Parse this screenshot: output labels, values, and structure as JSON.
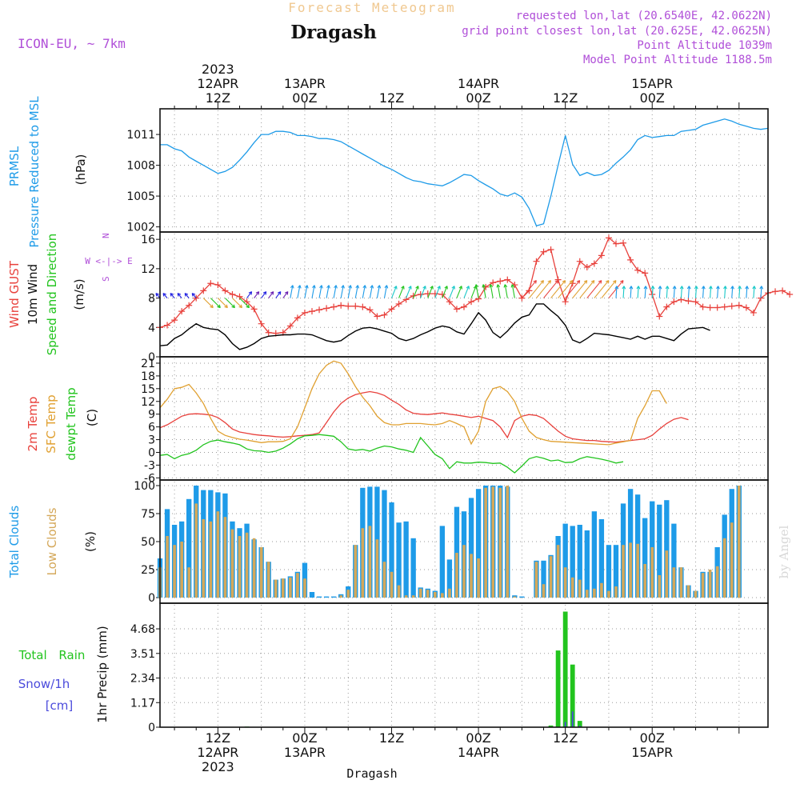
{
  "header": {
    "title": "Forecast Meteogram",
    "location": "Dragash",
    "model": "ICON-EU, ~ 7km",
    "requested": "requested lon,lat (20.6540E, 42.0622N)",
    "grid": "grid point closest lon,lat (20.625E, 42.0625N)",
    "point_alt": "Point Altitude 1039m",
    "model_alt": "Model Point Altitude 1188.5m",
    "watermark": "by Angel",
    "footer": "Dragash"
  },
  "colors": {
    "prmsl": "#1e9be8",
    "gust": "#e8413c",
    "wind": "#000000",
    "dir": "#22c41e",
    "t2m": "#e8413c",
    "sfc": "#e0a030",
    "dewpt": "#22c41e",
    "total_clouds": "#1e9be8",
    "low_clouds": "#d4a85a",
    "rain": "#22c41e",
    "snow": "#4b4bdc",
    "model": "#b04fd8",
    "title_faint": "#f0c890"
  },
  "time_axis": {
    "top_ticks": [
      {
        "h": 12,
        "lines": [
          "2023",
          "12APR",
          "12Z"
        ]
      },
      {
        "h": 24,
        "lines": [
          "13APR",
          "00Z"
        ]
      },
      {
        "h": 36,
        "lines": [
          "12Z"
        ]
      },
      {
        "h": 48,
        "lines": [
          "14APR",
          "00Z"
        ]
      },
      {
        "h": 60,
        "lines": [
          "12Z"
        ]
      },
      {
        "h": 72,
        "lines": [
          "15APR",
          "00Z"
        ]
      }
    ],
    "bottom_ticks": [
      {
        "h": 12,
        "lines": [
          "12Z",
          "12APR",
          "2023"
        ]
      },
      {
        "h": 24,
        "lines": [
          "00Z",
          "13APR"
        ]
      },
      {
        "h": 36,
        "lines": [
          "12Z"
        ]
      },
      {
        "h": 48,
        "lines": [
          "00Z",
          "14APR"
        ]
      },
      {
        "h": 60,
        "lines": [
          "12Z"
        ]
      },
      {
        "h": 72,
        "lines": [
          "00Z",
          "15APR"
        ]
      }
    ]
  },
  "panels": {
    "prmsl": {
      "labels": [
        "PRMSL",
        "Pressure Reduced to MSL"
      ],
      "unit": "(hPa)",
      "ticks": [
        "1002",
        "1005",
        "1008",
        "1011"
      ]
    },
    "wind": {
      "labels": [
        "Wind GUST",
        "10m Wind",
        "Speed and Direction"
      ],
      "unit": "(m/s)",
      "ticks": [
        "0",
        "4",
        "8",
        "12",
        "16"
      ],
      "compass": [
        "N",
        "W <-|-> E",
        "S"
      ]
    },
    "temp": {
      "labels": [
        "2m Temp",
        "SFC Temp",
        "dewpt Temp"
      ],
      "unit": "(C)",
      "ticks": [
        "-6",
        "-3",
        "0",
        "3",
        "6",
        "9",
        "12",
        "15",
        "18",
        "21"
      ]
    },
    "clouds": {
      "labels": [
        "Total Clouds",
        "Low Clouds"
      ],
      "unit": "(%)",
      "ticks": [
        "0",
        "25",
        "50",
        "75",
        "100"
      ]
    },
    "precip": {
      "labels": [
        "Total Rain",
        "Snow/1h",
        "[cm]"
      ],
      "axis_label": "1hr Precip (mm)",
      "ticks": [
        "0",
        "1.17",
        "2.34",
        "3.51",
        "4.68"
      ]
    }
  },
  "chart_data": [
    {
      "type": "line",
      "title": "PRMSL",
      "ylabel": "(hPa)",
      "ylim": [
        1001.5,
        1013.5
      ],
      "x_start": "2023-04-12 04Z",
      "x_step_hours": 1,
      "series": [
        {
          "name": "PRMSL",
          "values": [
            1010.0,
            1010.0,
            1009.6,
            1009.4,
            1008.8,
            1008.4,
            1008.0,
            1007.6,
            1007.2,
            1007.4,
            1007.8,
            1008.5,
            1009.3,
            1010.2,
            1011.0,
            1011.0,
            1011.3,
            1011.3,
            1011.2,
            1010.9,
            1010.9,
            1010.8,
            1010.6,
            1010.6,
            1010.5,
            1010.3,
            1009.9,
            1009.5,
            1009.1,
            1008.7,
            1008.3,
            1007.9,
            1007.6,
            1007.2,
            1006.8,
            1006.5,
            1006.4,
            1006.2,
            1006.1,
            1006.0,
            1006.3,
            1006.7,
            1007.1,
            1007.0,
            1006.5,
            1006.1,
            1005.7,
            1005.2,
            1005.0,
            1005.3,
            1004.9,
            1003.8,
            1002.1,
            1002.3,
            1005.0,
            1008.0,
            1010.9,
            1008.1,
            1007.0,
            1007.3,
            1007.0,
            1007.1,
            1007.5,
            1008.2,
            1008.8,
            1009.5,
            1010.5,
            1010.9,
            1010.7,
            1010.8,
            1010.9,
            1010.9,
            1011.3,
            1011.4,
            1011.5,
            1011.9,
            1012.1,
            1012.3,
            1012.5,
            1012.3,
            1012.0,
            1011.8,
            1011.6,
            1011.5,
            1011.6
          ]
        }
      ]
    },
    {
      "type": "line",
      "title": "Wind",
      "ylabel": "(m/s)",
      "ylim": [
        0,
        17
      ],
      "series": [
        {
          "name": "Wind GUST",
          "values": [
            4.0,
            4.3,
            5.0,
            6.2,
            7.0,
            8.0,
            9.0,
            10.0,
            9.8,
            9.0,
            8.5,
            8.2,
            7.5,
            6.5,
            4.5,
            3.3,
            3.2,
            3.3,
            4.2,
            5.3,
            6.0,
            6.2,
            6.4,
            6.6,
            6.8,
            7.0,
            6.9,
            6.9,
            6.8,
            6.4,
            5.5,
            5.7,
            6.5,
            7.2,
            7.8,
            8.3,
            8.5,
            8.6,
            8.6,
            8.5,
            7.5,
            6.5,
            6.8,
            7.5,
            7.9,
            9.5,
            10.1,
            10.3,
            10.5,
            9.8,
            8.0,
            9.0,
            13.0,
            14.3,
            14.6,
            10.5,
            7.5,
            10.0,
            13.0,
            12.2,
            12.7,
            13.8,
            16.2,
            15.4,
            15.5,
            13.2,
            11.8,
            11.4,
            8.5,
            5.5,
            6.8,
            7.5,
            7.8,
            7.6,
            7.5,
            6.8,
            6.7,
            6.7,
            6.8,
            6.9,
            7.0,
            6.7,
            6.0,
            8.0,
            8.7,
            8.9,
            9.0,
            8.5
          ]
        },
        {
          "name": "10m Wind",
          "values": [
            1.5,
            1.6,
            2.5,
            3.0,
            3.8,
            4.5,
            4.0,
            3.8,
            3.7,
            3.0,
            1.8,
            1.0,
            1.3,
            1.8,
            2.5,
            2.8,
            2.9,
            3.0,
            3.0,
            3.1,
            3.1,
            3.0,
            2.6,
            2.2,
            2.0,
            2.2,
            2.9,
            3.5,
            3.9,
            4.0,
            3.8,
            3.5,
            3.2,
            2.5,
            2.2,
            2.5,
            3.0,
            3.4,
            3.9,
            4.2,
            4.0,
            3.4,
            3.1,
            4.5,
            6.0,
            5.0,
            3.3,
            2.6,
            3.5,
            4.6,
            5.4,
            5.7,
            7.2,
            7.2,
            6.3,
            5.5,
            4.3,
            2.3,
            1.9,
            2.5,
            3.2,
            3.1,
            3.0,
            2.8,
            2.6,
            2.4,
            2.8,
            2.4,
            2.8,
            2.8,
            2.5,
            2.2,
            3.1,
            3.8,
            3.9,
            4.0,
            3.6
          ]
        }
      ]
    },
    {
      "type": "line",
      "title": "Temperature",
      "ylabel": "(C)",
      "ylim": [
        -6.5,
        22.5
      ],
      "series": [
        {
          "name": "2m Temp",
          "values": [
            5.8,
            6.5,
            7.5,
            8.5,
            9.0,
            9.1,
            9.0,
            8.8,
            8.2,
            7.0,
            5.5,
            4.8,
            4.5,
            4.2,
            4.0,
            3.9,
            3.7,
            3.6,
            3.7,
            3.9,
            4.0,
            4.2,
            4.6,
            7.0,
            9.5,
            11.5,
            12.8,
            13.6,
            14.0,
            14.3,
            14.0,
            13.4,
            12.3,
            11.3,
            10.0,
            9.2,
            9.0,
            8.9,
            9.1,
            9.3,
            9.0,
            8.8,
            8.5,
            8.2,
            8.5,
            8.0,
            7.5,
            6.0,
            3.5,
            7.5,
            8.5,
            8.9,
            8.7,
            8.0,
            6.5,
            5.0,
            3.8,
            3.2,
            3.0,
            2.8,
            2.8,
            2.6,
            2.5,
            2.4,
            2.6,
            2.8,
            3.0,
            3.2,
            4.0,
            5.5,
            6.8,
            7.8,
            8.2,
            7.7
          ]
        },
        {
          "name": "SFC Temp",
          "values": [
            10.5,
            12.5,
            15.0,
            15.3,
            16.0,
            14.0,
            11.5,
            8.0,
            5.0,
            4.0,
            3.5,
            3.1,
            2.9,
            2.6,
            2.3,
            2.5,
            2.5,
            2.6,
            3.2,
            6.0,
            10.5,
            15.0,
            18.5,
            20.5,
            21.5,
            21.0,
            18.5,
            15.5,
            13.0,
            11.0,
            8.5,
            7.0,
            6.5,
            6.5,
            6.8,
            6.8,
            6.8,
            6.6,
            6.5,
            6.8,
            7.5,
            6.8,
            6.0,
            2.0,
            5.0,
            12.0,
            15.0,
            15.5,
            14.3,
            12.0,
            8.0,
            5.0,
            3.5,
            3.0,
            2.6,
            2.5,
            2.4,
            2.3,
            2.2,
            2.1,
            2.0,
            1.9,
            1.8,
            2.2,
            2.5,
            2.8,
            8.0,
            11.0,
            14.5,
            14.5,
            11.5
          ]
        },
        {
          "name": "dewpt Temp",
          "values": [
            -0.7,
            -0.5,
            -1.5,
            -0.7,
            -0.3,
            0.5,
            1.8,
            2.6,
            2.9,
            2.5,
            2.2,
            1.8,
            0.8,
            0.4,
            0.3,
            0.0,
            0.3,
            1.0,
            2.0,
            3.2,
            3.9,
            4.0,
            4.2,
            4.0,
            3.8,
            2.5,
            0.8,
            0.5,
            0.7,
            0.3,
            1.0,
            1.5,
            1.3,
            0.8,
            0.5,
            0.0,
            3.5,
            1.5,
            -0.5,
            -1.5,
            -3.8,
            -2.2,
            -2.5,
            -2.5,
            -2.3,
            -2.4,
            -2.6,
            -2.5,
            -3.5,
            -4.8,
            -3.2,
            -1.5,
            -1.0,
            -1.4,
            -2.0,
            -1.8,
            -2.4,
            -2.3,
            -1.5,
            -1.0,
            -1.3,
            -1.6,
            -2.0,
            -2.5,
            -2.2
          ]
        }
      ]
    },
    {
      "type": "bar",
      "title": "Clouds",
      "ylabel": "(%)",
      "ylim": [
        -5,
        105
      ],
      "series": [
        {
          "name": "Total Clouds",
          "values": [
            35,
            79,
            65,
            68,
            88,
            100,
            96,
            96,
            94,
            93,
            68,
            62,
            66,
            52,
            45,
            32,
            16,
            17,
            19,
            23,
            31,
            5,
            1,
            1,
            1,
            3,
            10,
            47,
            98,
            99,
            99,
            96,
            85,
            67,
            68,
            53,
            9,
            8,
            6,
            64,
            34,
            81,
            77,
            89,
            97,
            100,
            100,
            100,
            99,
            2,
            1,
            0,
            33,
            33,
            38,
            55,
            66,
            64,
            65,
            60,
            77,
            70,
            47,
            47,
            84,
            97,
            92,
            71,
            86,
            83,
            87,
            66,
            27,
            11,
            6,
            23,
            23,
            45,
            74,
            97,
            100
          ]
        },
        {
          "name": "Low Clouds",
          "values": [
            27,
            55,
            47,
            50,
            27,
            84,
            70,
            68,
            77,
            72,
            61,
            55,
            58,
            53,
            45,
            32,
            16,
            17,
            18,
            22,
            17,
            0,
            0,
            0,
            0,
            2,
            7,
            47,
            62,
            64,
            52,
            32,
            23,
            11,
            2,
            2,
            8,
            7,
            5,
            4,
            8,
            40,
            47,
            39,
            35,
            98,
            99,
            98,
            100,
            1,
            0,
            0,
            32,
            12,
            37,
            47,
            27,
            18,
            16,
            7,
            8,
            13,
            6,
            10,
            47,
            49,
            48,
            30,
            45,
            20,
            42,
            27,
            27,
            11,
            6,
            22,
            25,
            28,
            53,
            67,
            100
          ]
        }
      ]
    },
    {
      "type": "bar",
      "title": "Precipitation",
      "ylabel": "1hr Precip (mm)",
      "ylim": [
        0,
        5.9
      ],
      "series": [
        {
          "name": "Total Rain",
          "values": [
            0,
            0,
            0,
            0,
            0,
            0,
            0,
            0,
            0,
            0,
            0,
            0,
            0.03,
            0.02,
            0,
            0,
            0,
            0,
            0,
            0,
            0,
            0,
            0,
            0,
            0,
            0,
            0,
            0,
            0,
            0,
            0,
            0,
            0,
            0,
            0,
            0,
            0,
            0,
            0,
            0,
            0,
            0,
            0,
            0,
            0,
            0,
            0,
            0,
            0,
            0,
            0,
            0,
            0,
            0,
            0.08,
            3.65,
            5.5,
            2.98,
            0.3,
            0,
            0,
            0,
            0,
            0,
            0,
            0,
            0,
            0,
            0,
            0,
            0,
            0,
            0,
            0,
            0,
            0,
            0,
            0,
            0,
            0,
            0,
            0,
            0,
            0,
            0,
            0
          ]
        },
        {
          "name": "Snow/1h",
          "values": [
            0,
            0,
            0,
            0,
            0,
            0,
            0,
            0,
            0,
            0,
            0,
            0,
            0,
            0,
            0,
            0,
            0,
            0,
            0,
            0,
            0,
            0,
            0,
            0,
            0,
            0,
            0,
            0,
            0,
            0,
            0,
            0,
            0,
            0,
            0,
            0,
            0,
            0,
            0,
            0,
            0,
            0,
            0,
            0,
            0,
            0,
            0,
            0,
            0,
            0,
            0,
            0,
            0,
            0,
            0,
            0,
            0.25,
            0.75,
            0.08,
            0,
            0,
            0,
            0,
            0,
            0,
            0,
            0,
            0,
            0,
            0,
            0,
            0,
            0,
            0,
            0,
            0,
            0,
            0,
            0,
            0,
            0,
            0,
            0,
            0,
            0,
            0
          ]
        }
      ]
    }
  ]
}
